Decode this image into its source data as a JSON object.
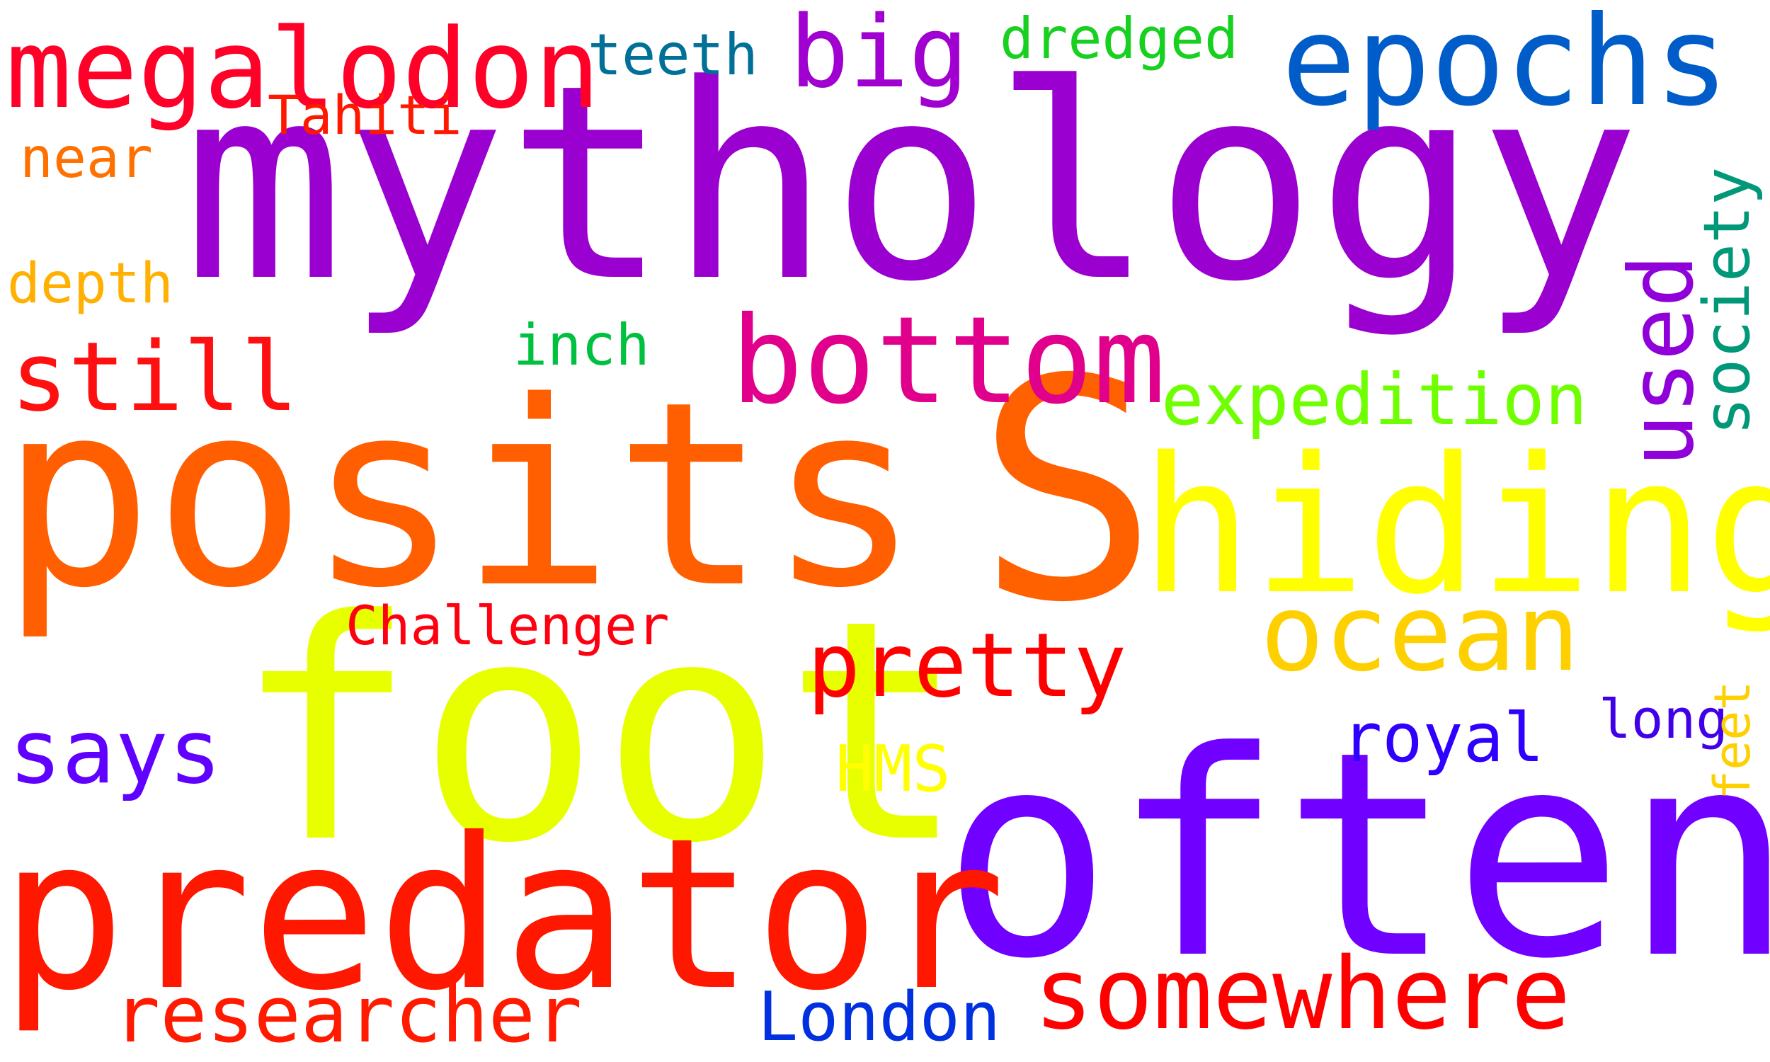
{
  "words": [
    {
      "id": "mythology",
      "text": "mythology",
      "color": "#9a00d0"
    },
    {
      "id": "posits",
      "text": "posits",
      "color": "#ff5f00"
    },
    {
      "id": "s",
      "text": "S",
      "color": "#ff6000"
    },
    {
      "id": "foot",
      "text": "foot",
      "color": "#e8ff00"
    },
    {
      "id": "often",
      "text": "often",
      "color": "#7000ff"
    },
    {
      "id": "predator",
      "text": "predator",
      "color": "#ff1800"
    },
    {
      "id": "hiding",
      "text": "hiding",
      "color": "#ffff00"
    },
    {
      "id": "megalodon",
      "text": "megalodon",
      "color": "#ff0028"
    },
    {
      "id": "epochs",
      "text": "epochs",
      "color": "#005cc8"
    },
    {
      "id": "bottom",
      "text": "bottom",
      "color": "#e0008c"
    },
    {
      "id": "ocean",
      "text": "ocean",
      "color": "#ffd000"
    },
    {
      "id": "somewhere",
      "text": "somewhere",
      "color": "#ff0000"
    },
    {
      "id": "pretty",
      "text": "pretty",
      "color": "#ff0000"
    },
    {
      "id": "still",
      "text": "still",
      "color": "#ff1010"
    },
    {
      "id": "says",
      "text": "says",
      "color": "#6000ff"
    },
    {
      "id": "researcher",
      "text": "researcher",
      "color": "#ff1a00"
    },
    {
      "id": "big",
      "text": "big",
      "color": "#a000d0"
    },
    {
      "id": "expedition",
      "text": "expedition",
      "color": "#70ff00"
    },
    {
      "id": "used",
      "text": "used",
      "color": "#9000d8"
    },
    {
      "id": "society",
      "text": "society",
      "color": "#009878"
    },
    {
      "id": "london",
      "text": "London",
      "color": "#0030e0"
    },
    {
      "id": "royal",
      "text": "royal",
      "color": "#3000ff"
    },
    {
      "id": "challenger",
      "text": "Challenger",
      "color": "#ff0010"
    },
    {
      "id": "hms",
      "text": "HMS",
      "color": "#ffff00"
    },
    {
      "id": "teeth",
      "text": "teeth",
      "color": "#007098"
    },
    {
      "id": "dredged",
      "text": "dredged",
      "color": "#18d020"
    },
    {
      "id": "tahiti",
      "text": "Tahiti",
      "color": "#ff1800"
    },
    {
      "id": "near",
      "text": "near",
      "color": "#ff7000"
    },
    {
      "id": "depth",
      "text": "depth",
      "color": "#ffb000"
    },
    {
      "id": "inch",
      "text": "inch",
      "color": "#00c040"
    },
    {
      "id": "long",
      "text": "long",
      "color": "#4000e8"
    },
    {
      "id": "feet",
      "text": "feet",
      "color": "#ffd000"
    }
  ]
}
